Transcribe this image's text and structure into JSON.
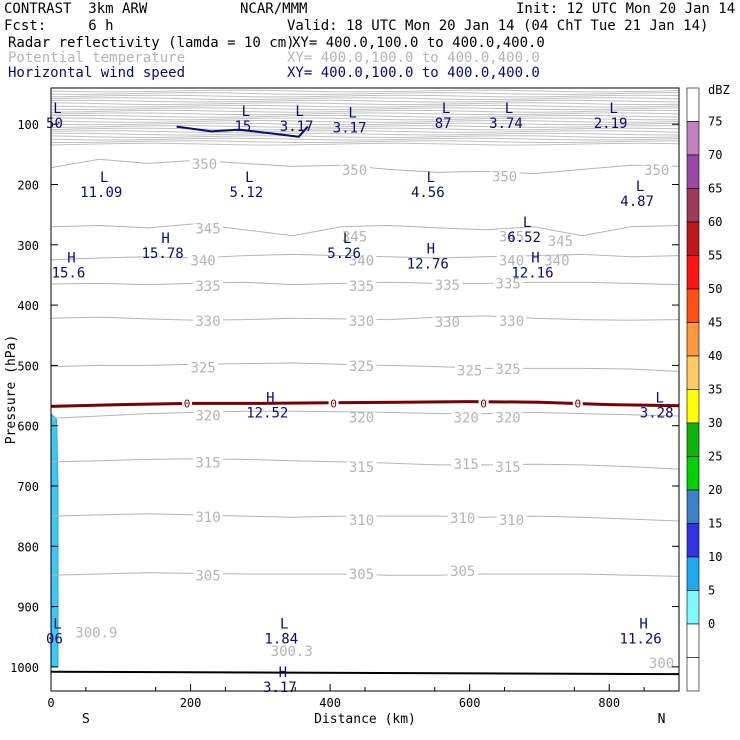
{
  "header": {
    "title": "CONTRAST  3km ARW",
    "center": "NCAR/MMM",
    "init": "Init: 12 UTC Mon 20 Jan 14",
    "fcst": "Fcst:     6 h",
    "valid": "Valid: 18 UTC Mon 20 Jan 14 (04 ChT Tue 21 Jan 14)",
    "fields": [
      {
        "name": "Radar reflectivity (lamda = 10 cm)",
        "xy": "XY= 400.0,100.0 to 400.0,400.0",
        "color": "#000000"
      },
      {
        "name": "Potential temperature",
        "xy": "XY= 400.0,100.0 to 400.0,400.0",
        "color": "#b4b4b4"
      },
      {
        "name": "Horizontal wind speed",
        "xy": "XY= 400.0,100.0 to 400.0,400.0",
        "color": "#0a0a78"
      }
    ]
  },
  "chart_data": {
    "type": "cross-section",
    "xlabel": "Distance (km)",
    "ylabel": "Pressure (hPa)",
    "xlim": [
      0,
      900
    ],
    "ylim": [
      1040,
      40
    ],
    "x_ticks": [
      0,
      200,
      400,
      600,
      800
    ],
    "y_ticks": [
      100,
      200,
      300,
      400,
      500,
      600,
      700,
      800,
      900,
      1000
    ],
    "end_labels": {
      "left": "S",
      "right": "N"
    },
    "theta_contours": [
      {
        "value": 350,
        "p": [
          172,
          158,
          165,
          160,
          165,
          170,
          168,
          175,
          180,
          178,
          182,
          175,
          168,
          170
        ]
      },
      {
        "value": 345,
        "p": [
          270,
          268,
          272,
          265,
          275,
          285,
          270,
          268,
          272,
          275,
          270,
          285,
          270,
          268
        ]
      },
      {
        "value": 340,
        "p": [
          325,
          322,
          320,
          322,
          318,
          316,
          318,
          320,
          322,
          320,
          318,
          316,
          320,
          318
        ]
      },
      {
        "value": 335,
        "p": [
          365,
          364,
          366,
          364,
          362,
          366,
          364,
          362,
          364,
          364,
          362,
          362,
          364,
          366
        ]
      },
      {
        "value": 330,
        "p": [
          422,
          420,
          423,
          425,
          424,
          422,
          423,
          424,
          420,
          418,
          422,
          424,
          425,
          424
        ]
      },
      {
        "value": 325,
        "p": [
          502,
          500,
          500,
          498,
          497,
          496,
          498,
          500,
          502,
          505,
          505,
          505,
          506,
          510
        ]
      },
      {
        "value": 320,
        "p": [
          588,
          584,
          580,
          578,
          576,
          576,
          577,
          578,
          580,
          580,
          578,
          580,
          582,
          584
        ]
      },
      {
        "value": 315,
        "p": [
          660,
          658,
          656,
          655,
          656,
          658,
          660,
          662,
          665,
          665,
          664,
          665,
          668,
          672
        ]
      },
      {
        "value": 310,
        "p": [
          750,
          748,
          746,
          748,
          750,
          752,
          750,
          750,
          750,
          752,
          750,
          752,
          755,
          758
        ]
      },
      {
        "value": 305,
        "p": [
          848,
          846,
          844,
          845,
          846,
          846,
          846,
          848,
          848,
          846,
          846,
          846,
          848,
          850
        ]
      }
    ],
    "contour_labels": [
      {
        "text": "350",
        "x": 220,
        "p": 173
      },
      {
        "text": "350",
        "x": 435,
        "p": 183
      },
      {
        "text": "350",
        "x": 650,
        "p": 193
      },
      {
        "text": "350",
        "x": 868,
        "p": 183
      },
      {
        "text": "345",
        "x": 225,
        "p": 280
      },
      {
        "text": "345",
        "x": 435,
        "p": 293
      },
      {
        "text": "345",
        "x": 660,
        "p": 293
      },
      {
        "text": "345",
        "x": 730,
        "p": 300
      },
      {
        "text": "340",
        "x": 218,
        "p": 333
      },
      {
        "text": "340",
        "x": 445,
        "p": 333
      },
      {
        "text": "340",
        "x": 660,
        "p": 333
      },
      {
        "text": "340",
        "x": 725,
        "p": 333
      },
      {
        "text": "335",
        "x": 225,
        "p": 375
      },
      {
        "text": "335",
        "x": 445,
        "p": 375
      },
      {
        "text": "335",
        "x": 568,
        "p": 373
      },
      {
        "text": "335",
        "x": 655,
        "p": 371
      },
      {
        "text": "330",
        "x": 225,
        "p": 433
      },
      {
        "text": "330",
        "x": 445,
        "p": 433
      },
      {
        "text": "330",
        "x": 568,
        "p": 435
      },
      {
        "text": "330",
        "x": 660,
        "p": 433
      },
      {
        "text": "325",
        "x": 218,
        "p": 510
      },
      {
        "text": "325",
        "x": 445,
        "p": 508
      },
      {
        "text": "325",
        "x": 600,
        "p": 515
      },
      {
        "text": "325",
        "x": 655,
        "p": 513
      },
      {
        "text": "320",
        "x": 225,
        "p": 590
      },
      {
        "text": "320",
        "x": 445,
        "p": 593
      },
      {
        "text": "320",
        "x": 595,
        "p": 593
      },
      {
        "text": "320",
        "x": 655,
        "p": 593
      },
      {
        "text": "315",
        "x": 225,
        "p": 668
      },
      {
        "text": "315",
        "x": 445,
        "p": 675
      },
      {
        "text": "315",
        "x": 595,
        "p": 670
      },
      {
        "text": "315",
        "x": 655,
        "p": 675
      },
      {
        "text": "310",
        "x": 225,
        "p": 758
      },
      {
        "text": "310",
        "x": 445,
        "p": 763
      },
      {
        "text": "310",
        "x": 590,
        "p": 760
      },
      {
        "text": "310",
        "x": 660,
        "p": 763
      },
      {
        "text": "305",
        "x": 225,
        "p": 855
      },
      {
        "text": "305",
        "x": 445,
        "p": 853
      },
      {
        "text": "305",
        "x": 590,
        "p": 848
      },
      {
        "text": "300.9",
        "x": 65,
        "p": 950
      },
      {
        "text": "300.3",
        "x": 345,
        "p": 980
      },
      {
        "text": "300",
        "x": 875,
        "p": 1000
      }
    ],
    "extrema": [
      {
        "letter": "L",
        "value": "50",
        "x": 5,
        "p": 95,
        "color": "navy"
      },
      {
        "letter": "L",
        "value": "15",
        "x": 275,
        "p": 100,
        "color": "navy"
      },
      {
        "letter": "L",
        "value": "3.17",
        "x": 352,
        "p": 100,
        "color": "navy"
      },
      {
        "letter": "L",
        "value": "3.17",
        "x": 428,
        "p": 102,
        "color": "navy"
      },
      {
        "letter": "L",
        "value": "87",
        "x": 562,
        "p": 95,
        "color": "navy"
      },
      {
        "letter": "L",
        "value": "3.74",
        "x": 652,
        "p": 95,
        "color": "navy"
      },
      {
        "letter": "L",
        "value": "2.19",
        "x": 802,
        "p": 95,
        "color": "navy"
      },
      {
        "letter": "L",
        "value": "11.09",
        "x": 72,
        "p": 209,
        "color": "navy"
      },
      {
        "letter": "L",
        "value": "5.12",
        "x": 280,
        "p": 209,
        "color": "navy"
      },
      {
        "letter": "L",
        "value": "4.56",
        "x": 540,
        "p": 209,
        "color": "navy"
      },
      {
        "letter": "L",
        "value": "4.87",
        "x": 840,
        "p": 224,
        "color": "navy"
      },
      {
        "letter": "H",
        "value": "15.78",
        "x": 160,
        "p": 310,
        "color": "navy"
      },
      {
        "letter": "L",
        "value": "5.26",
        "x": 420,
        "p": 310,
        "color": "navy"
      },
      {
        "letter": "H",
        "value": "12.76",
        "x": 540,
        "p": 328,
        "color": "navy"
      },
      {
        "letter": "L",
        "value": "6.52",
        "x": 678,
        "p": 284,
        "color": "navy"
      },
      {
        "letter": "H",
        "value": "12.16",
        "x": 690,
        "p": 343,
        "color": "navy"
      },
      {
        "letter": "H",
        "value": "15.6",
        "x": 25,
        "p": 343,
        "color": "navy"
      },
      {
        "letter": "H",
        "value": "12.52",
        "x": 310,
        "p": 575,
        "color": "navy"
      },
      {
        "letter": "L",
        "value": "3.28",
        "x": 868,
        "p": 575,
        "color": "navy"
      },
      {
        "letter": "L",
        "value": "06",
        "x": 5,
        "p": 950,
        "color": "navy"
      },
      {
        "letter": "L",
        "value": "1.84",
        "x": 330,
        "p": 950,
        "color": "navy"
      },
      {
        "letter": "H",
        "value": "11.26",
        "x": 845,
        "p": 950,
        "color": "navy"
      },
      {
        "letter": "H",
        "value": "3.17",
        "x": 328,
        "p": 1030,
        "color": "navy"
      }
    ],
    "wind_contour": {
      "x": [
        180,
        230,
        270,
        320,
        355,
        368
      ],
      "p": [
        104,
        112,
        109,
        116,
        121,
        104
      ]
    },
    "zero_line": {
      "x": [
        0,
        100,
        200,
        300,
        400,
        500,
        600,
        700,
        800,
        900
      ],
      "p": [
        568,
        565,
        563,
        563,
        562,
        561,
        560,
        561,
        565,
        567
      ],
      "labels_x": [
        195,
        405,
        620,
        755
      ],
      "label": "0"
    },
    "surface_line": {
      "x": [
        0,
        900
      ],
      "p": [
        1008,
        1012
      ]
    },
    "reflectivity_region": {
      "x": [
        0,
        8,
        10,
        10,
        0
      ],
      "p": [
        580,
        590,
        700,
        1000,
        1000
      ]
    },
    "colorbar": {
      "unit": "dBZ",
      "levels": [
        "75",
        "70",
        "65",
        "60",
        "55",
        "50",
        "45",
        "40",
        "35",
        "30",
        "25",
        "20",
        "15",
        "10",
        "5",
        "0"
      ],
      "colors": [
        "#ffffff",
        "#c47fc0",
        "#9a4aa6",
        "#a0395a",
        "#c01818",
        "#ff1414",
        "#ff5014",
        "#ff9a3c",
        "#ffc864",
        "#ffff00",
        "#0ab40a",
        "#00d200",
        "#3c82c8",
        "#3232e6",
        "#1eaaf0",
        "#7dfaff",
        "#ffffff",
        "#ffffff"
      ]
    }
  }
}
